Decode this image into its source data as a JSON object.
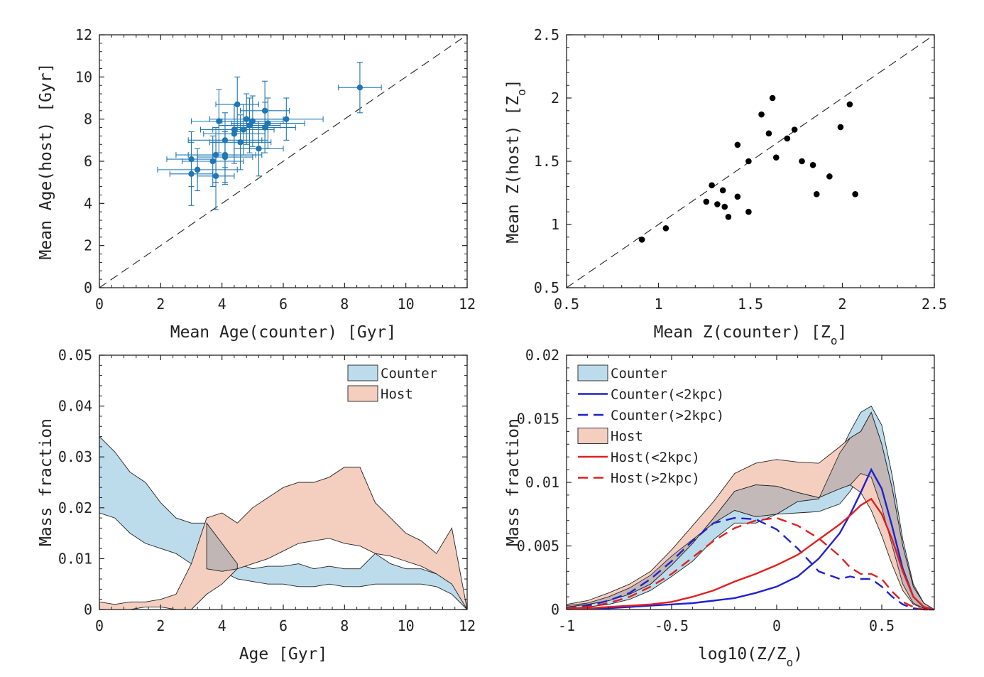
{
  "colors": {
    "counter_fill": "#bcdcec",
    "host_fill": "#f4cfc0",
    "overlap_fill": "#c0b6b6",
    "point_blue": "#1f77b4",
    "line_blue": "#2121cc",
    "line_red": "#e02020"
  },
  "chart_data": [
    {
      "type": "scatter",
      "panel": "top-left",
      "xlabel": "Mean Age(counter)  [Gyr]",
      "ylabel": "Mean Age(host)  [Gyr]",
      "xlim": [
        0,
        12
      ],
      "ylim": [
        0,
        12
      ],
      "xticks": [
        "0",
        "2",
        "4",
        "6",
        "8",
        "10",
        "12"
      ],
      "yticks": [
        "0",
        "2",
        "4",
        "6",
        "8",
        "10",
        "12"
      ],
      "reference_line": "y = x (dashed)",
      "points": [
        {
          "x": 3.0,
          "y": 6.1,
          "xerr": 0.8,
          "yerr": 1.3
        },
        {
          "x": 3.2,
          "y": 5.6,
          "xerr": 1.3,
          "yerr": 1.0
        },
        {
          "x": 3.0,
          "y": 5.4,
          "xerr": 0.7,
          "yerr": 1.5
        },
        {
          "x": 3.8,
          "y": 5.3,
          "xerr": 0.6,
          "yerr": 1.6
        },
        {
          "x": 3.7,
          "y": 6.0,
          "xerr": 1.0,
          "yerr": 1.2
        },
        {
          "x": 3.8,
          "y": 6.3,
          "xerr": 1.3,
          "yerr": 1.3
        },
        {
          "x": 4.1,
          "y": 6.3,
          "xerr": 1.2,
          "yerr": 1.4
        },
        {
          "x": 4.1,
          "y": 6.2,
          "xerr": 0.9,
          "yerr": 1.2
        },
        {
          "x": 3.9,
          "y": 7.9,
          "xerr": 0.9,
          "yerr": 1.5
        },
        {
          "x": 4.1,
          "y": 7.0,
          "xerr": 1.2,
          "yerr": 1.3
        },
        {
          "x": 4.4,
          "y": 7.3,
          "xerr": 1.0,
          "yerr": 1.4
        },
        {
          "x": 4.4,
          "y": 7.5,
          "xerr": 1.1,
          "yerr": 1.2
        },
        {
          "x": 4.5,
          "y": 8.7,
          "xerr": 0.7,
          "yerr": 1.3
        },
        {
          "x": 4.6,
          "y": 6.9,
          "xerr": 1.0,
          "yerr": 1.3
        },
        {
          "x": 4.7,
          "y": 7.5,
          "xerr": 1.0,
          "yerr": 1.2
        },
        {
          "x": 4.8,
          "y": 8.0,
          "xerr": 1.2,
          "yerr": 1.2
        },
        {
          "x": 4.9,
          "y": 7.7,
          "xerr": 1.0,
          "yerr": 1.3
        },
        {
          "x": 5.0,
          "y": 7.9,
          "xerr": 1.0,
          "yerr": 1.2
        },
        {
          "x": 5.2,
          "y": 6.6,
          "xerr": 0.8,
          "yerr": 1.3
        },
        {
          "x": 5.4,
          "y": 7.6,
          "xerr": 1.0,
          "yerr": 1.2
        },
        {
          "x": 5.4,
          "y": 8.4,
          "xerr": 0.8,
          "yerr": 1.4
        },
        {
          "x": 5.5,
          "y": 7.8,
          "xerr": 1.2,
          "yerr": 1.2
        },
        {
          "x": 6.1,
          "y": 8.0,
          "xerr": 1.2,
          "yerr": 1.0
        },
        {
          "x": 8.5,
          "y": 9.5,
          "xerr": 0.7,
          "yerr": 1.2
        }
      ]
    },
    {
      "type": "scatter",
      "panel": "top-right",
      "xlabel": "Mean Z(counter)  [Z",
      "ylabel": "Mean Z(host)  [Z",
      "unit_subscript": "o",
      "xlim": [
        0.5,
        2.5
      ],
      "ylim": [
        0.5,
        2.5
      ],
      "xticks": [
        "0.5",
        "1",
        "1.5",
        "2",
        "2.5"
      ],
      "yticks": [
        "0.5",
        "1",
        "1.5",
        "2",
        "2.5"
      ],
      "reference_line": "y = x (dashed)",
      "points": [
        {
          "x": 0.91,
          "y": 0.88
        },
        {
          "x": 1.04,
          "y": 0.97
        },
        {
          "x": 1.26,
          "y": 1.18
        },
        {
          "x": 1.29,
          "y": 1.31
        },
        {
          "x": 1.32,
          "y": 1.16
        },
        {
          "x": 1.35,
          "y": 1.27
        },
        {
          "x": 1.36,
          "y": 1.14
        },
        {
          "x": 1.38,
          "y": 1.06
        },
        {
          "x": 1.43,
          "y": 1.63
        },
        {
          "x": 1.43,
          "y": 1.22
        },
        {
          "x": 1.49,
          "y": 1.5
        },
        {
          "x": 1.49,
          "y": 1.1
        },
        {
          "x": 1.56,
          "y": 1.87
        },
        {
          "x": 1.6,
          "y": 1.72
        },
        {
          "x": 1.62,
          "y": 2.0
        },
        {
          "x": 1.64,
          "y": 1.53
        },
        {
          "x": 1.7,
          "y": 1.68
        },
        {
          "x": 1.74,
          "y": 1.75
        },
        {
          "x": 1.78,
          "y": 1.5
        },
        {
          "x": 1.84,
          "y": 1.47
        },
        {
          "x": 1.86,
          "y": 1.24
        },
        {
          "x": 1.93,
          "y": 1.38
        },
        {
          "x": 1.99,
          "y": 1.77
        },
        {
          "x": 2.04,
          "y": 1.95
        },
        {
          "x": 2.07,
          "y": 1.24
        }
      ]
    },
    {
      "type": "area",
      "panel": "bottom-left",
      "xlabel": "Age [Gyr]",
      "ylabel": "Mass fraction",
      "xlim": [
        0,
        12
      ],
      "ylim": [
        0,
        0.05
      ],
      "xticks": [
        "0",
        "2",
        "4",
        "6",
        "8",
        "10",
        "12"
      ],
      "yticks": [
        "0",
        "0.01",
        "0.02",
        "0.03",
        "0.04",
        "0.05"
      ],
      "legend": [
        "Counter",
        "Host"
      ],
      "x": [
        0,
        0.5,
        1,
        1.5,
        2,
        2.5,
        3,
        3.5,
        4,
        4.5,
        5,
        5.5,
        6,
        6.5,
        7,
        7.5,
        8,
        8.5,
        9,
        9.5,
        10,
        10.5,
        11,
        11.5,
        12
      ],
      "series": [
        {
          "name": "Counter",
          "upper": [
            0.034,
            0.031,
            0.027,
            0.025,
            0.021,
            0.018,
            0.017,
            0.017,
            0.013,
            0.009,
            0.008,
            0.0085,
            0.0085,
            0.009,
            0.008,
            0.0085,
            0.008,
            0.008,
            0.011,
            0.009,
            0.008,
            0.008,
            0.007,
            0.0055,
            0.0
          ],
          "lower": [
            0.019,
            0.018,
            0.015,
            0.013,
            0.012,
            0.011,
            0.009,
            0.008,
            0.0075,
            0.006,
            0.0055,
            0.005,
            0.005,
            0.0045,
            0.0045,
            0.005,
            0.0045,
            0.0045,
            0.005,
            0.005,
            0.005,
            0.005,
            0.0045,
            0.003,
            0.0
          ]
        },
        {
          "name": "Host",
          "upper": [
            0.0015,
            0.001,
            0.0015,
            0.0015,
            0.002,
            0.003,
            0.009,
            0.018,
            0.019,
            0.017,
            0.02,
            0.022,
            0.024,
            0.025,
            0.025,
            0.026,
            0.028,
            0.028,
            0.021,
            0.018,
            0.015,
            0.0135,
            0.011,
            0.016,
            0.0
          ],
          "lower": [
            0.0,
            0.0,
            0.0,
            0.0005,
            0.0005,
            0.0,
            0.0,
            0.003,
            0.005,
            0.008,
            0.009,
            0.01,
            0.0115,
            0.013,
            0.0135,
            0.014,
            0.013,
            0.0125,
            0.011,
            0.0105,
            0.0095,
            0.0085,
            0.007,
            0.005,
            0.0
          ]
        }
      ]
    },
    {
      "type": "line",
      "panel": "bottom-right",
      "xlabel": "log10(Z/Z",
      "xlabel_end": ")",
      "ylabel": "Mass fraction",
      "xlim": [
        -1,
        0.75
      ],
      "ylim": [
        0,
        0.02
      ],
      "xticks": [
        "-1",
        "-0.5",
        "0",
        "0.5"
      ],
      "yticks": [
        "0",
        "0.005",
        "0.01",
        "0.015",
        "0.02"
      ],
      "legend": [
        "Counter",
        "Counter(<2kpc)",
        "Counter(>2kpc)",
        "Host",
        "Host(<2kpc)",
        "Host(>2kpc)"
      ],
      "x": [
        -1,
        -0.9,
        -0.8,
        -0.7,
        -0.6,
        -0.5,
        -0.4,
        -0.3,
        -0.2,
        -0.1,
        0,
        0.1,
        0.2,
        0.3,
        0.35,
        0.4,
        0.45,
        0.5,
        0.55,
        0.6,
        0.65,
        0.7,
        0.75
      ],
      "bands": [
        {
          "name": "Counter",
          "upper": [
            0.0003,
            0.0005,
            0.001,
            0.0017,
            0.0027,
            0.0042,
            0.0055,
            0.0068,
            0.0078,
            0.0073,
            0.0075,
            0.0085,
            0.0087,
            0.0123,
            0.014,
            0.0155,
            0.016,
            0.0145,
            0.0105,
            0.0055,
            0.002,
            0.0005,
            0.0
          ],
          "lower": [
            0.0001,
            0.0002,
            0.0004,
            0.0008,
            0.0015,
            0.0026,
            0.0038,
            0.0055,
            0.0068,
            0.0068,
            0.0075,
            0.0076,
            0.0077,
            0.0083,
            0.0093,
            0.0107,
            0.0104,
            0.008,
            0.005,
            0.002,
            0.0005,
            0.0001,
            0.0
          ]
        },
        {
          "name": "Host",
          "upper": [
            0.0004,
            0.0007,
            0.0013,
            0.002,
            0.003,
            0.0047,
            0.0066,
            0.0085,
            0.0107,
            0.0115,
            0.0118,
            0.0116,
            0.0115,
            0.0128,
            0.0135,
            0.014,
            0.0155,
            0.013,
            0.0095,
            0.005,
            0.0018,
            0.0005,
            0.0
          ],
          "lower": [
            0.0002,
            0.0004,
            0.0007,
            0.0012,
            0.002,
            0.0035,
            0.0052,
            0.0072,
            0.0093,
            0.0098,
            0.0097,
            0.0092,
            0.0088,
            0.0095,
            0.0098,
            0.0092,
            0.0078,
            0.0058,
            0.0035,
            0.0015,
            0.0004,
            0.0001,
            0.0
          ]
        }
      ],
      "series": [
        {
          "name": "Counter(<2kpc)",
          "style": "solid-blue",
          "values": [
            0.0001,
            0.0001,
            0.0001,
            0.0002,
            0.0003,
            0.0004,
            0.0005,
            0.0007,
            0.0009,
            0.0013,
            0.0018,
            0.0026,
            0.004,
            0.006,
            0.0075,
            0.0092,
            0.011,
            0.0095,
            0.0065,
            0.0032,
            0.001,
            0.0002,
            0.0
          ]
        },
        {
          "name": "Counter(>2kpc)",
          "style": "dashed-blue",
          "values": [
            0.0001,
            0.0003,
            0.0007,
            0.0013,
            0.0024,
            0.0038,
            0.0054,
            0.0068,
            0.0072,
            0.0071,
            0.0063,
            0.0048,
            0.003,
            0.0024,
            0.0026,
            0.0024,
            0.0024,
            0.0018,
            0.001,
            0.0004,
            0.0001,
            0.0,
            0.0
          ]
        },
        {
          "name": "Host(<2kpc)",
          "style": "solid-red",
          "values": [
            0.0001,
            0.0001,
            0.0002,
            0.0003,
            0.0004,
            0.0006,
            0.001,
            0.0015,
            0.0022,
            0.0028,
            0.0035,
            0.0043,
            0.0055,
            0.0067,
            0.0074,
            0.0082,
            0.0087,
            0.0075,
            0.0055,
            0.003,
            0.001,
            0.0002,
            0.0
          ]
        },
        {
          "name": "Host(>2kpc)",
          "style": "dashed-red",
          "values": [
            0.0001,
            0.0002,
            0.0005,
            0.001,
            0.0018,
            0.0028,
            0.0041,
            0.0054,
            0.0064,
            0.007,
            0.0072,
            0.0066,
            0.0056,
            0.0042,
            0.0033,
            0.0028,
            0.0028,
            0.0024,
            0.0014,
            0.0006,
            0.0002,
            0.0,
            0.0
          ]
        }
      ]
    }
  ]
}
